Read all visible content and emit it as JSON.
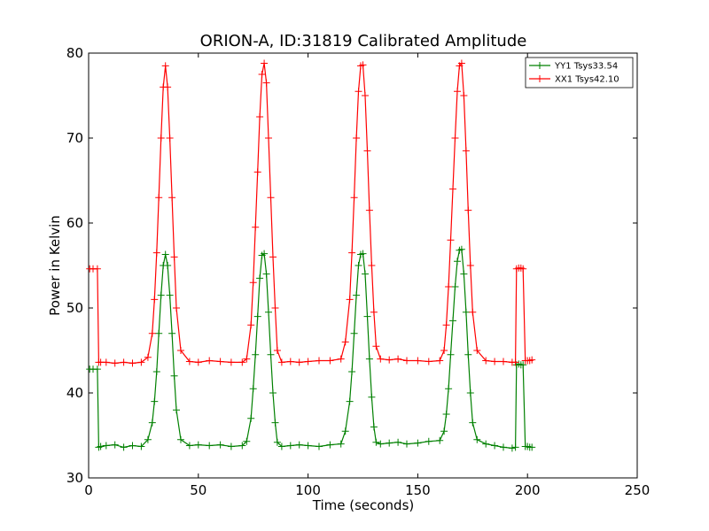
{
  "chart_data": {
    "type": "line",
    "title": "ORION-A, ID:31819 Calibrated Amplitude",
    "xlabel": "Time (seconds)",
    "ylabel": "Power in Kelvin",
    "xlim": [
      0,
      250
    ],
    "ylim": [
      30,
      80
    ],
    "xticks": [
      "0",
      "50",
      "100",
      "150",
      "200",
      "250"
    ],
    "yticks": [
      "30",
      "40",
      "50",
      "60",
      "70",
      "80"
    ],
    "grid": false,
    "legend_position": "top-right",
    "series": [
      {
        "name": "YY1 Tsys33.54",
        "color": "#008000",
        "marker": "+",
        "x": [
          0.5,
          2,
          4,
          4.6,
          5.5,
          8,
          12,
          16,
          20,
          24,
          27,
          29,
          30,
          31,
          32,
          33,
          34,
          35,
          36,
          37,
          38,
          39,
          40,
          42,
          46,
          50,
          55,
          60,
          65,
          70,
          72,
          74,
          75,
          76,
          77,
          78,
          79,
          80,
          81,
          82,
          83,
          84,
          85,
          86,
          88,
          92,
          96,
          100,
          105,
          110,
          115,
          117,
          119,
          120,
          121,
          122,
          123,
          124,
          125,
          126,
          127,
          128,
          129,
          130,
          131,
          133,
          137,
          141,
          145,
          150,
          155,
          160,
          162,
          163,
          164,
          165,
          166,
          167,
          168,
          169,
          170,
          171,
          172,
          173,
          174,
          175,
          177,
          181,
          185,
          189,
          193,
          194.5,
          195,
          196,
          197,
          198,
          199,
          200,
          201,
          202
        ],
        "y": [
          42.8,
          42.8,
          42.8,
          33.6,
          33.7,
          33.8,
          33.9,
          33.6,
          33.8,
          33.7,
          34.5,
          36.5,
          39.0,
          42.5,
          47.0,
          51.5,
          55.0,
          56.3,
          55.0,
          51.5,
          47.0,
          42.0,
          38.0,
          34.5,
          33.8,
          33.9,
          33.8,
          33.9,
          33.7,
          33.8,
          34.3,
          37.0,
          40.5,
          44.5,
          49.0,
          53.5,
          56.2,
          56.4,
          54.0,
          49.5,
          44.5,
          40.0,
          36.5,
          34.2,
          33.7,
          33.8,
          33.9,
          33.8,
          33.7,
          33.9,
          34.0,
          35.5,
          39.0,
          42.5,
          47.0,
          51.5,
          55.0,
          56.3,
          56.4,
          54.0,
          49.0,
          44.0,
          39.5,
          36.0,
          34.2,
          34.0,
          34.1,
          34.2,
          34.0,
          34.1,
          34.3,
          34.4,
          35.5,
          37.5,
          40.5,
          44.5,
          48.5,
          52.5,
          55.5,
          56.8,
          56.9,
          54.0,
          49.5,
          44.5,
          40.0,
          36.5,
          34.5,
          34.0,
          33.8,
          33.6,
          33.5,
          33.6,
          43.3,
          43.4,
          43.3,
          43.3,
          33.7,
          33.7,
          33.6,
          33.6
        ]
      },
      {
        "name": "XX1 Tsys42.10",
        "color": "#ff0000",
        "marker": "+",
        "x": [
          0.5,
          2,
          4,
          4.6,
          5.5,
          8,
          12,
          16,
          20,
          24,
          27,
          29,
          30,
          31,
          32,
          33,
          34,
          35,
          36,
          37,
          38,
          39,
          40,
          42,
          46,
          50,
          55,
          60,
          65,
          70,
          72,
          74,
          75,
          76,
          77,
          78,
          79,
          80,
          81,
          82,
          83,
          84,
          85,
          86,
          88,
          92,
          96,
          100,
          105,
          110,
          115,
          117,
          119,
          120,
          121,
          122,
          123,
          124,
          125,
          126,
          127,
          128,
          129,
          130,
          131,
          133,
          137,
          141,
          145,
          150,
          155,
          160,
          162,
          163,
          164,
          165,
          166,
          167,
          168,
          169,
          170,
          171,
          172,
          173,
          174,
          175,
          177,
          181,
          185,
          189,
          193,
          194.5,
          195,
          196,
          197,
          198,
          199,
          200,
          201,
          202
        ],
        "y": [
          54.6,
          54.6,
          54.6,
          43.6,
          43.6,
          43.6,
          43.5,
          43.6,
          43.5,
          43.6,
          44.2,
          47.0,
          51.0,
          56.5,
          63.0,
          70.0,
          76.0,
          78.5,
          76.0,
          70.0,
          63.0,
          56.0,
          50.0,
          45.0,
          43.7,
          43.6,
          43.8,
          43.7,
          43.6,
          43.6,
          44.0,
          48.0,
          53.0,
          59.5,
          66.0,
          72.5,
          77.5,
          78.8,
          76.5,
          70.0,
          63.0,
          56.0,
          50.0,
          45.0,
          43.6,
          43.7,
          43.6,
          43.7,
          43.8,
          43.8,
          44.0,
          46.0,
          51.0,
          56.5,
          63.0,
          70.0,
          75.5,
          78.5,
          78.6,
          75.0,
          68.5,
          61.5,
          55.0,
          49.5,
          45.5,
          44.0,
          43.9,
          44.0,
          43.8,
          43.8,
          43.7,
          43.8,
          45.0,
          48.0,
          52.5,
          58.0,
          64.0,
          70.0,
          75.5,
          78.5,
          78.8,
          75.0,
          68.5,
          61.5,
          55.0,
          49.5,
          45.0,
          43.8,
          43.7,
          43.7,
          43.6,
          43.6,
          54.6,
          54.7,
          54.7,
          54.6,
          43.8,
          43.8,
          43.8,
          43.9
        ]
      }
    ]
  }
}
